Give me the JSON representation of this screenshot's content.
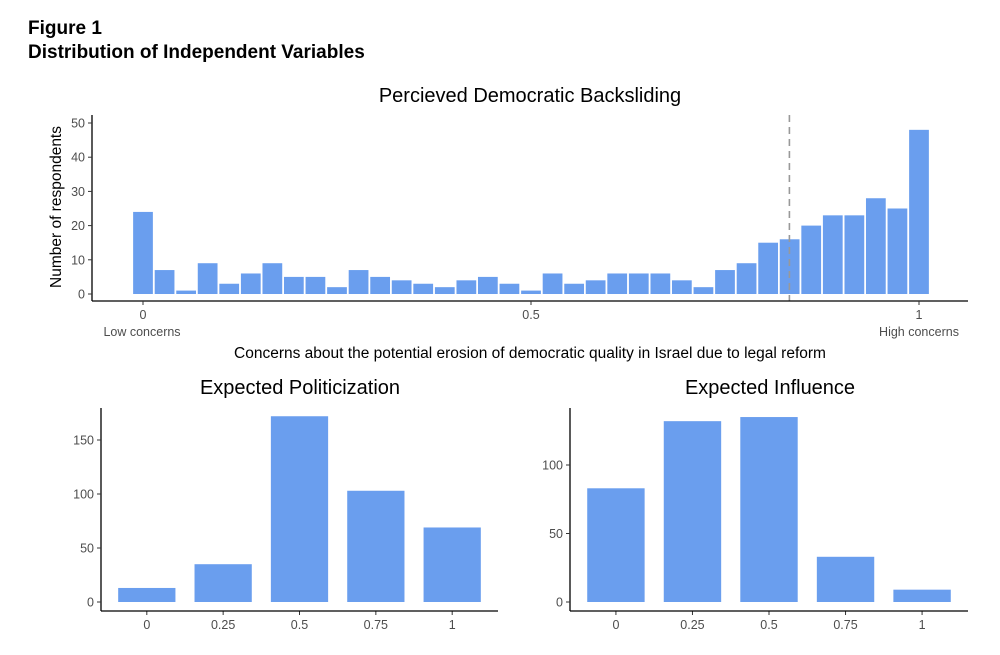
{
  "figure": {
    "number": "Figure 1",
    "title": "Distribution of Independent Variables"
  },
  "chart_data": [
    {
      "type": "bar",
      "title": "Percieved Democratic Backsliding",
      "xlabel": "Concerns about the potential erosion of democratic quality in Israel due to legal reform",
      "ylabel": "Number of respondents",
      "x": [
        0,
        0.0278,
        0.0556,
        0.0833,
        0.1111,
        0.1389,
        0.1667,
        0.1944,
        0.2222,
        0.25,
        0.2778,
        0.3056,
        0.3333,
        0.3611,
        0.3889,
        0.4167,
        0.4444,
        0.4722,
        0.5,
        0.5278,
        0.5556,
        0.5833,
        0.6111,
        0.6389,
        0.6667,
        0.6944,
        0.7222,
        0.75,
        0.7778,
        0.8056,
        0.8333,
        0.8611,
        0.8889,
        0.9167,
        0.9444,
        0.9722,
        1
      ],
      "values": [
        24,
        7,
        1,
        9,
        3,
        6,
        9,
        5,
        5,
        2,
        7,
        5,
        4,
        3,
        2,
        4,
        5,
        3,
        1,
        6,
        3,
        4,
        6,
        6,
        6,
        4,
        2,
        7,
        9,
        15,
        16,
        20,
        23,
        23,
        28,
        25,
        48
      ],
      "xlim": [
        -0.04,
        1.06
      ],
      "ylim": [
        0,
        50
      ],
      "xticks": [
        "0",
        "0.5",
        "1"
      ],
      "yticks": [
        "0",
        "10",
        "20",
        "30",
        "40",
        "50"
      ],
      "x_end_labels": {
        "low": "Low concerns",
        "high": "High concerns"
      },
      "mean_line": 0.833,
      "color": "#6a9eee",
      "mean_line_color": "#999999",
      "grid": false
    },
    {
      "type": "bar",
      "title": "Expected Politicization",
      "categories": [
        "0",
        "0.25",
        "0.5",
        "0.75",
        "1"
      ],
      "values": [
        13,
        35,
        172,
        103,
        69
      ],
      "ylim": [
        0,
        180
      ],
      "yticks": [
        "0",
        "50",
        "100",
        "150"
      ],
      "color": "#6a9eee",
      "grid": false
    },
    {
      "type": "bar",
      "title": "Expected Influence",
      "categories": [
        "0",
        "0.25",
        "0.5",
        "0.75",
        "1"
      ],
      "values": [
        83,
        132,
        135,
        33,
        9
      ],
      "ylim": [
        0,
        140
      ],
      "yticks": [
        "0",
        "50",
        "100"
      ],
      "color": "#6a9eee",
      "grid": false
    }
  ]
}
